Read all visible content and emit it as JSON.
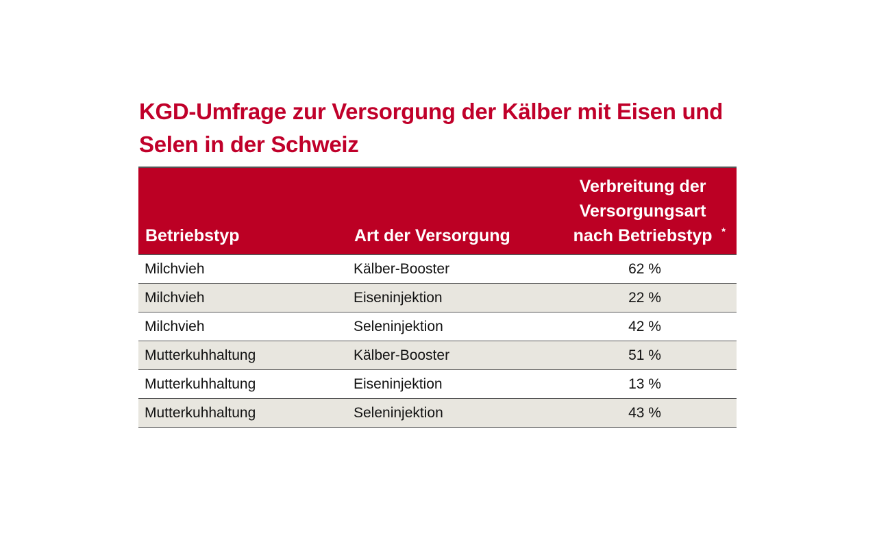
{
  "title": "KGD-Umfrage zur Versorgung der Kälber mit Eisen und Selen in der Schweiz",
  "colors": {
    "accent": "#bc0024",
    "row_alt": "#e8e6df"
  },
  "table": {
    "headers": [
      "Betriebstyp",
      "Art der Versorgung",
      "Verbreitung der Versorgungsart nach Betriebstyp"
    ],
    "header_footnote_mark": "*",
    "rows": [
      [
        "Milchvieh",
        "Kälber-Booster",
        "62 %"
      ],
      [
        "Milchvieh",
        "Eiseninjektion",
        "22 %"
      ],
      [
        "Milchvieh",
        "Seleninjektion",
        "42 %"
      ],
      [
        "Mutterkuhhaltung",
        "Kälber-Booster",
        "51 %"
      ],
      [
        "Mutterkuhhaltung",
        "Eiseninjektion",
        "13 %"
      ],
      [
        "Mutterkuhhaltung",
        "Seleninjektion",
        "43 %"
      ]
    ]
  }
}
